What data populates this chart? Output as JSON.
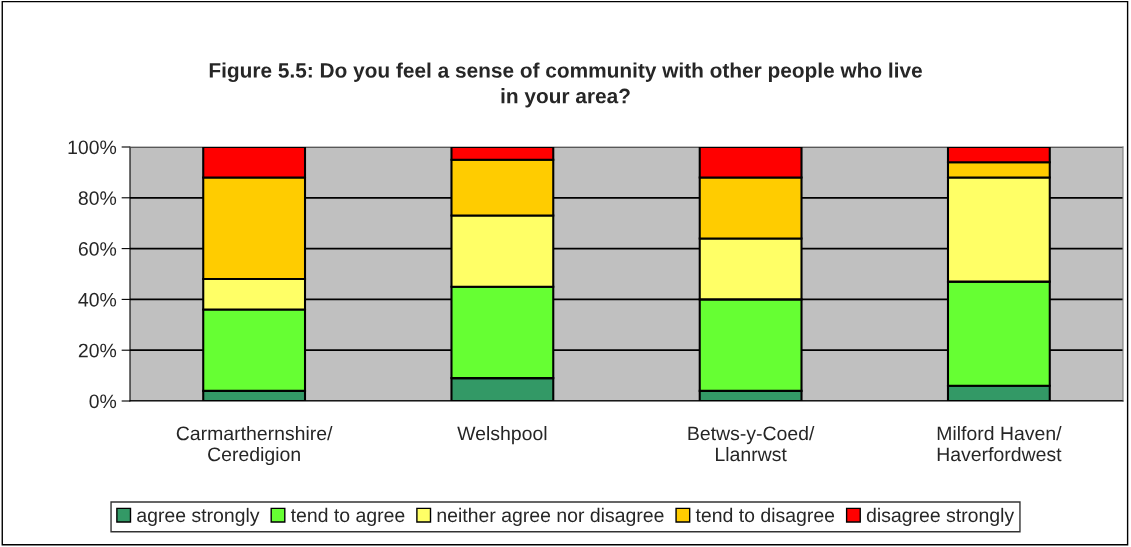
{
  "chart_data": {
    "type": "bar",
    "stacked": true,
    "title": "Figure 5.5: Do you feel a sense of community with other people who live\nin your area?",
    "categories": [
      "Carmarthernshire/\nCeredigion",
      "Welshpool",
      "Betws-y-Coed/\nLlanrwst",
      "Milford Haven/\nHaverfordwest"
    ],
    "series": [
      {
        "name": "agree strongly",
        "color": "#339966",
        "values": [
          4,
          9,
          4,
          6
        ]
      },
      {
        "name": "tend to agree",
        "color": "#66ff33",
        "values": [
          32,
          36,
          36,
          41
        ]
      },
      {
        "name": "neither agree nor disagree",
        "color": "#ffff66",
        "values": [
          12,
          28,
          24,
          41
        ]
      },
      {
        "name": "tend to disagree",
        "color": "#ffcc00",
        "values": [
          40,
          22,
          24,
          6
        ]
      },
      {
        "name": "disagree strongly",
        "color": "#ff0000",
        "values": [
          12,
          5,
          12,
          6
        ]
      }
    ],
    "ylim": [
      0,
      100
    ],
    "yticks": [
      {
        "value": 0,
        "label": "0%"
      },
      {
        "value": 20,
        "label": "20%"
      },
      {
        "value": 40,
        "label": "40%"
      },
      {
        "value": 60,
        "label": "60%"
      },
      {
        "value": 80,
        "label": "80%"
      },
      {
        "value": 100,
        "label": "100%"
      }
    ],
    "grid": "y",
    "legend": "bottom"
  }
}
